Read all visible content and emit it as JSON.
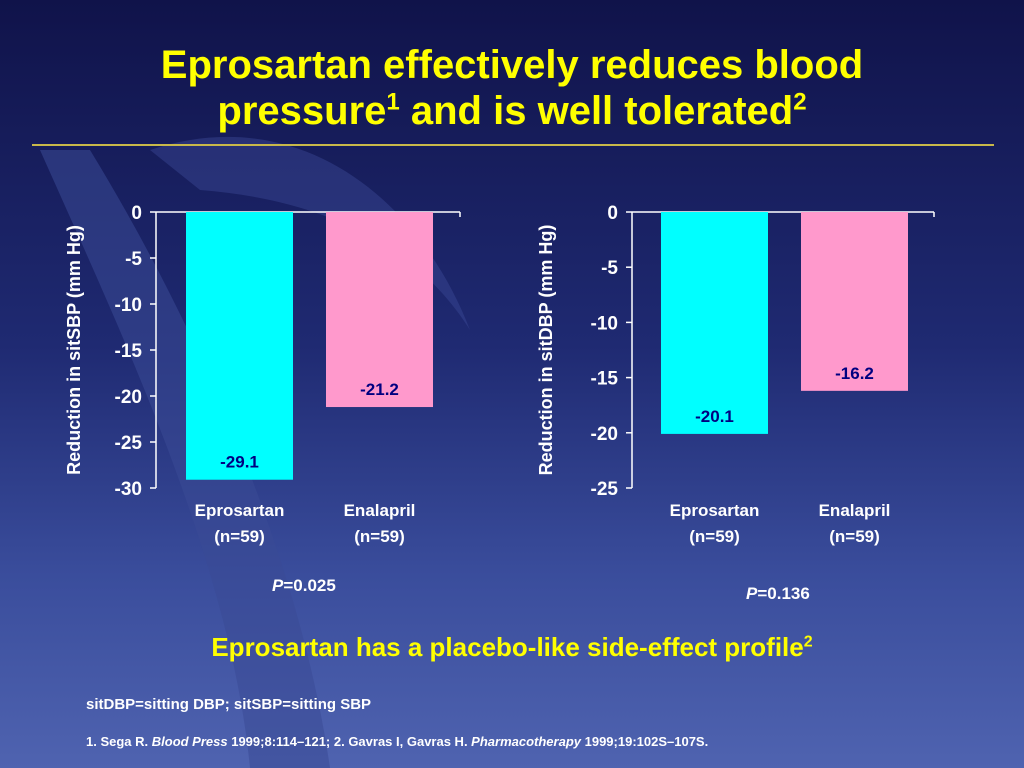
{
  "colors": {
    "background_top": "#10134a",
    "background_bottom": "#4f63b0",
    "title": "#ffff00",
    "eprosartan_bar": "#00ffff",
    "enalapril_bar": "#ff99cc",
    "axis_text": "#ffffff",
    "data_label": "#000080"
  },
  "title": {
    "line1": "Eprosartan effectively reduces blood",
    "line2_text": "pressure",
    "line2_ref1": "1",
    "line2_mid": " and is well tolerated",
    "line2_ref2": "2"
  },
  "chart_data": [
    {
      "type": "bar",
      "ylabel": "Reduction in sitSBP (mm Hg)",
      "ylim": [
        -30,
        0
      ],
      "yticks": [
        "0",
        "-5",
        "-10",
        "-15",
        "-20",
        "-25",
        "-30"
      ],
      "categories": [
        {
          "name": "Eprosartan",
          "n": "(n=59)"
        },
        {
          "name": "Enalapril",
          "n": "(n=59)"
        }
      ],
      "values": [
        -29.1,
        -21.2
      ],
      "value_labels": [
        "-29.1",
        "-21.2"
      ],
      "bar_colors": [
        "#00ffff",
        "#ff99cc"
      ],
      "p_label": "P",
      "p_value": "=0.025",
      "grid": false,
      "legend": "none"
    },
    {
      "type": "bar",
      "ylabel": "Reduction in sitDBP (mm Hg)",
      "ylim": [
        -25,
        0
      ],
      "yticks": [
        "0",
        "-5",
        "-10",
        "-15",
        "-20",
        "-25"
      ],
      "categories": [
        {
          "name": "Eprosartan",
          "n": "(n=59)"
        },
        {
          "name": "Enalapril",
          "n": "(n=59)"
        }
      ],
      "values": [
        -20.1,
        -16.2
      ],
      "value_labels": [
        "-20.1",
        "-16.2"
      ],
      "bar_colors": [
        "#00ffff",
        "#ff99cc"
      ],
      "p_label": "P",
      "p_value": "=0.136",
      "grid": false,
      "legend": "none"
    }
  ],
  "subtitle": {
    "text": "Eprosartan has a placebo-like side-effect profile",
    "ref": "2"
  },
  "abbreviations": "sitDBP=sitting DBP; sitSBP=sitting SBP",
  "references": {
    "r1_prefix": "1. Sega R. ",
    "r1_journal": "Blood Press",
    "r1_rest": " 1999;8:114–121; 2. Gavras I, Gavras H. ",
    "r2_journal": "Pharmacotherapy",
    "r2_rest": " 1999;19:102S–107S."
  }
}
